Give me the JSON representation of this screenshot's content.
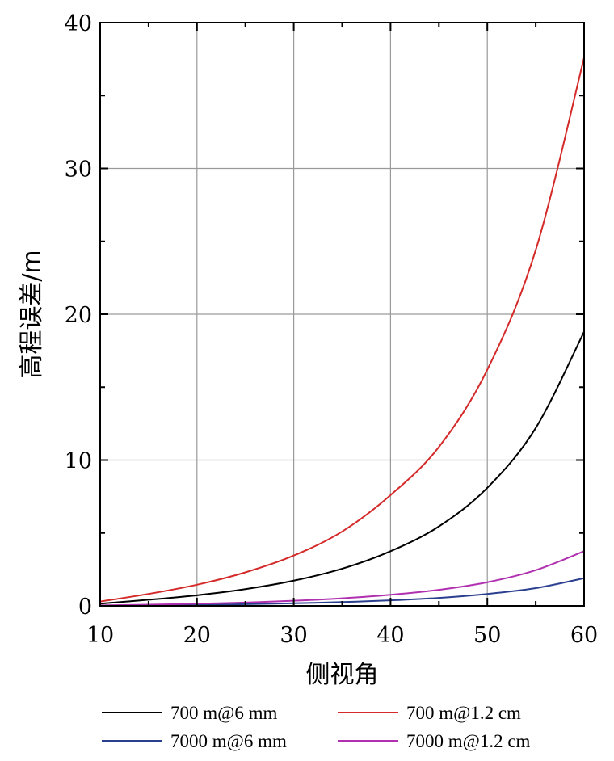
{
  "chart_data": {
    "type": "line",
    "xlabel": "侧视角",
    "ylabel": "高程误差/m",
    "xlim": [
      10,
      60
    ],
    "ylim": [
      0,
      40
    ],
    "x_ticks": [
      10,
      20,
      30,
      40,
      50,
      60
    ],
    "y_ticks": [
      0,
      10,
      20,
      30,
      40
    ],
    "x_tick_labels": [
      "10",
      "20",
      "30",
      "40",
      "50",
      "60"
    ],
    "y_tick_labels": [
      "0",
      "10",
      "20",
      "30",
      "40"
    ],
    "grid": true,
    "legend_position": "bottom",
    "x": [
      10,
      15,
      20,
      25,
      30,
      35,
      40,
      45,
      50,
      55,
      60
    ],
    "series": [
      {
        "name": "700 m@6 mm",
        "color": "#000000",
        "values": [
          0.15,
          0.42,
          0.73,
          1.15,
          1.73,
          2.55,
          3.75,
          5.45,
          8.1,
          12.2,
          18.8
        ]
      },
      {
        "name": "700 m@1.2 cm",
        "color": "#d42a2a",
        "values": [
          0.3,
          0.82,
          1.45,
          2.3,
          3.45,
          5.1,
          7.6,
          10.9,
          16.2,
          24.4,
          37.6
        ]
      },
      {
        "name": "7000 m@6 mm",
        "color": "#2b3f8f",
        "values": [
          0.02,
          0.04,
          0.07,
          0.12,
          0.18,
          0.26,
          0.38,
          0.55,
          0.82,
          1.22,
          1.9
        ]
      },
      {
        "name": "7000 m@1.2 cm",
        "color": "#b030b0",
        "values": [
          0.03,
          0.08,
          0.15,
          0.23,
          0.35,
          0.52,
          0.76,
          1.1,
          1.62,
          2.45,
          3.75
        ]
      }
    ]
  }
}
